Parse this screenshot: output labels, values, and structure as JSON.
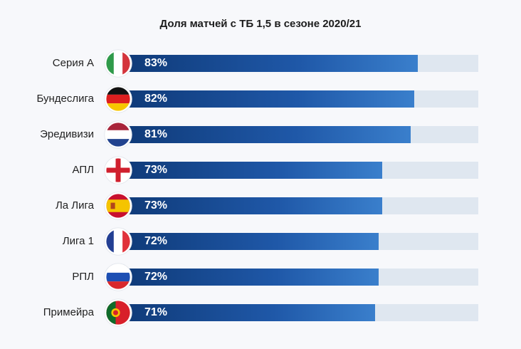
{
  "chart_data": {
    "type": "bar",
    "orientation": "horizontal",
    "title": "Доля матчей с ТБ 1,5 в сезоне 2020/21",
    "categories": [
      "Серия А",
      "Бундеслига",
      "Эредивизи",
      "АПЛ",
      "Ла Лига",
      "Лига 1",
      "РПЛ",
      "Примейра"
    ],
    "values": [
      83,
      82,
      81,
      73,
      73,
      72,
      72,
      71
    ],
    "value_labels": [
      "83%",
      "82%",
      "81%",
      "73%",
      "73%",
      "72%",
      "72%",
      "71%"
    ],
    "xlim": [
      0,
      100
    ],
    "flags": [
      "italy-flag",
      "germany-flag",
      "netherlands-flag",
      "england-flag",
      "spain-flag",
      "france-flag",
      "russia-flag",
      "portugal-flag"
    ],
    "colors": {
      "bar_start": "#0f3a78",
      "bar_end": "#3a7fcc",
      "track": "#dfe7f0"
    }
  }
}
